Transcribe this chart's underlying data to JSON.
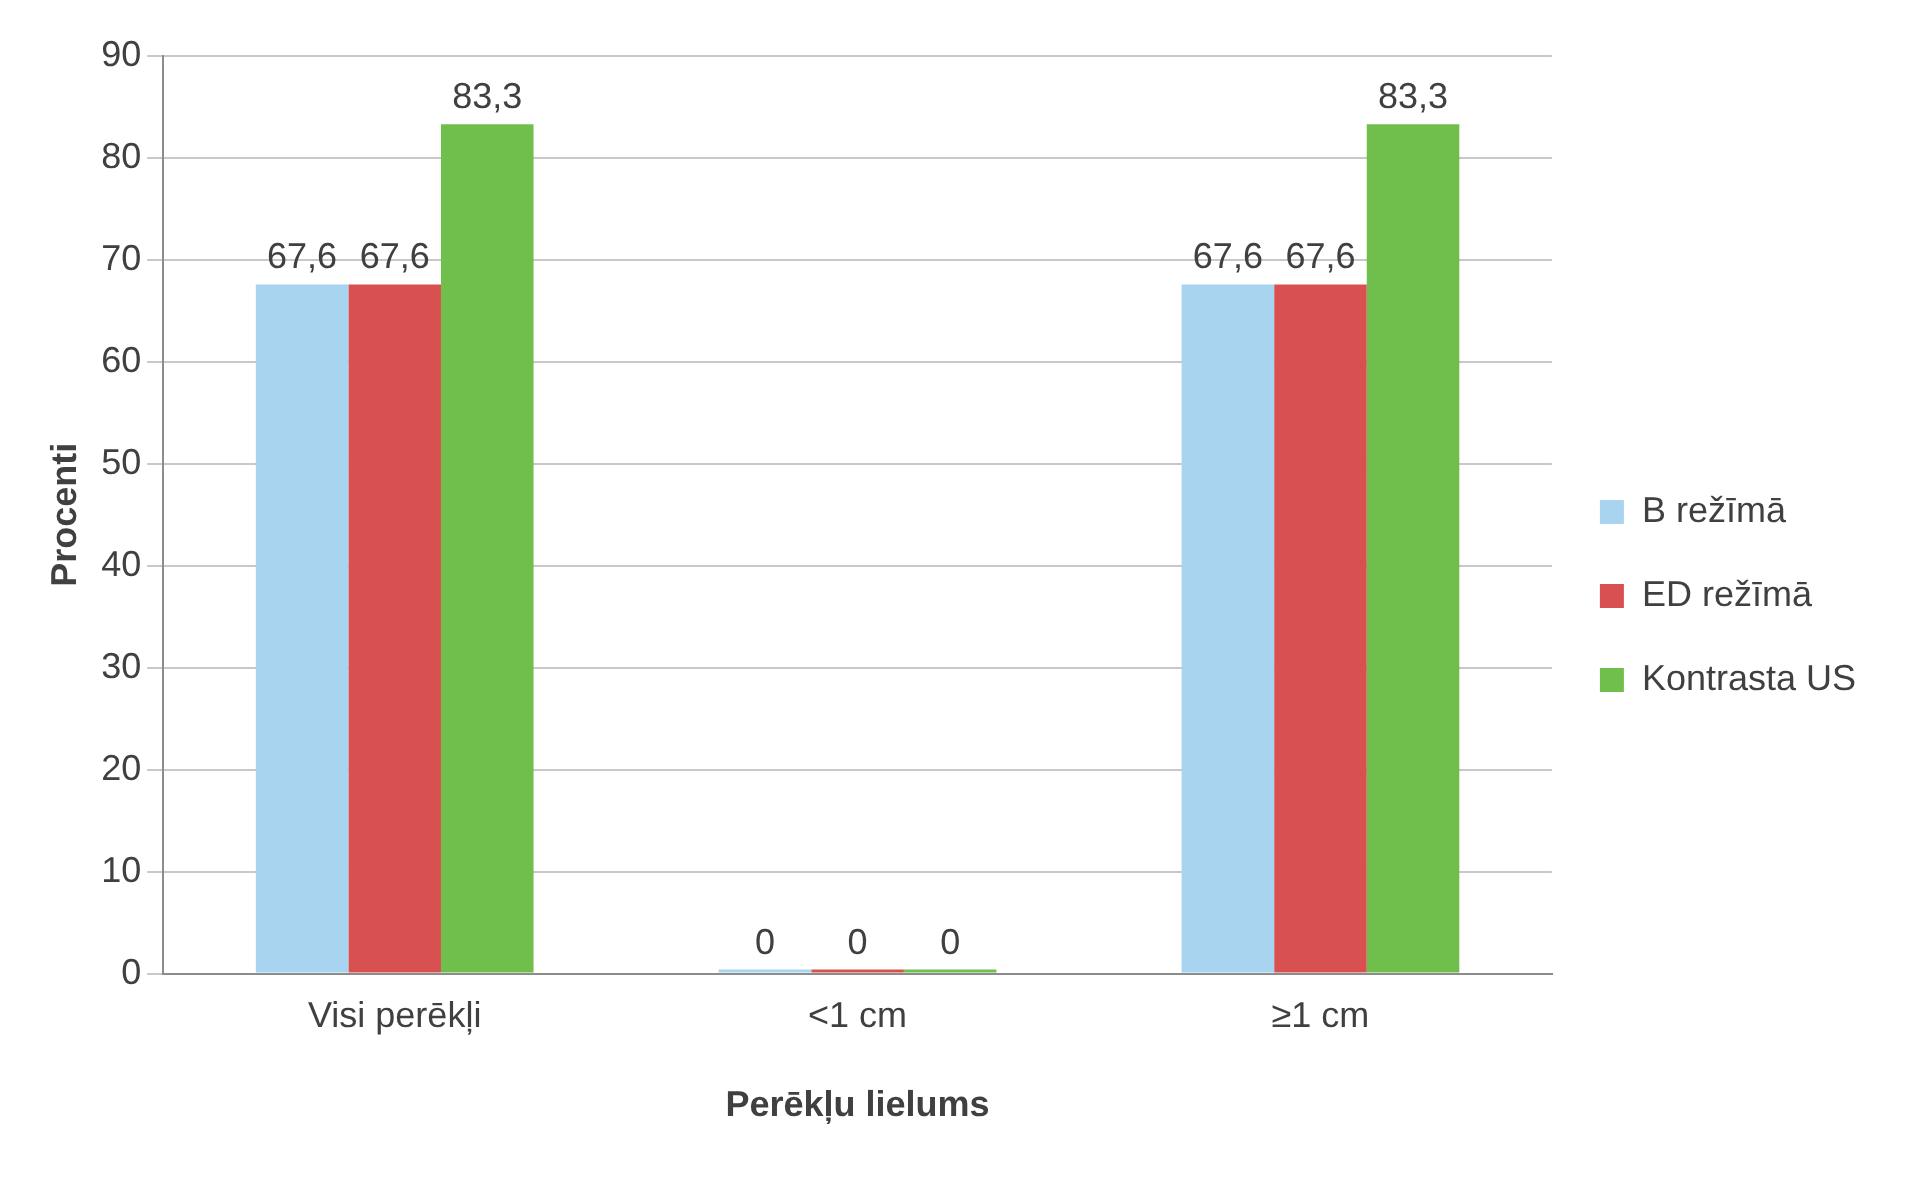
{
  "chart_data": {
    "type": "bar",
    "xlabel": "Perēkļu lielums",
    "ylabel": "Procenti",
    "categories": [
      "Visi perēkļi",
      "<1 cm",
      "≥1 cm"
    ],
    "series": [
      {
        "name": "B režīmā",
        "color": "#a9d4f0",
        "values": [
          67.6,
          0,
          67.6
        ],
        "value_labels": [
          "67,6",
          "0",
          "67,6"
        ]
      },
      {
        "name": "ED režīmā",
        "color": "#d95050",
        "values": [
          67.6,
          0,
          67.6
        ],
        "value_labels": [
          "67,6",
          "0",
          "67,6"
        ]
      },
      {
        "name": "Kontrasta US",
        "color": "#70bf4c",
        "values": [
          83.3,
          0,
          83.3
        ],
        "value_labels": [
          "83,3",
          "0",
          "83,3"
        ]
      }
    ],
    "ylim": [
      0,
      90
    ],
    "yticks": [
      0,
      10,
      20,
      30,
      40,
      50,
      60,
      70,
      80,
      90
    ],
    "grid": "y",
    "legend": "right"
  }
}
